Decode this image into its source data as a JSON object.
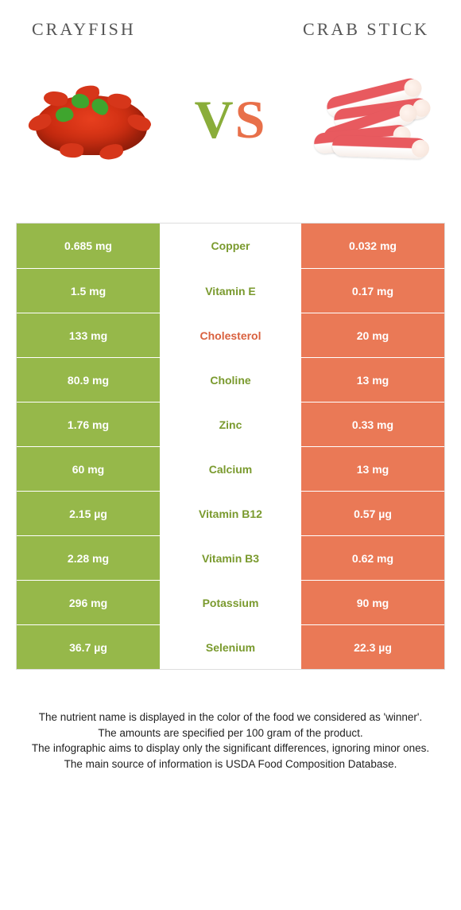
{
  "header": {
    "left": "Crayfish",
    "right": "Crab stick"
  },
  "vs": {
    "v": "V",
    "s": "S"
  },
  "colors": {
    "left_bg": "#96b84a",
    "right_bg": "#ea7956",
    "mid_bg": "#ffffff",
    "left_text": "#7a9a2e",
    "right_text": "#d9613f"
  },
  "rows": [
    {
      "left": "0.685 mg",
      "label": "Copper",
      "winner": "left",
      "right": "0.032 mg"
    },
    {
      "left": "1.5 mg",
      "label": "Vitamin E",
      "winner": "left",
      "right": "0.17 mg"
    },
    {
      "left": "133 mg",
      "label": "Cholesterol",
      "winner": "right",
      "right": "20 mg"
    },
    {
      "left": "80.9 mg",
      "label": "Choline",
      "winner": "left",
      "right": "13 mg"
    },
    {
      "left": "1.76 mg",
      "label": "Zinc",
      "winner": "left",
      "right": "0.33 mg"
    },
    {
      "left": "60 mg",
      "label": "Calcium",
      "winner": "left",
      "right": "13 mg"
    },
    {
      "left": "2.15 µg",
      "label": "Vitamin B12",
      "winner": "left",
      "right": "0.57 µg"
    },
    {
      "left": "2.28 mg",
      "label": "Vitamin B3",
      "winner": "left",
      "right": "0.62 mg"
    },
    {
      "left": "296 mg",
      "label": "Potassium",
      "winner": "left",
      "right": "90 mg"
    },
    {
      "left": "36.7 µg",
      "label": "Selenium",
      "winner": "left",
      "right": "22.3 µg"
    }
  ],
  "footer": {
    "l1": "The nutrient name is displayed in the color of the food we considered as 'winner'.",
    "l2": "The amounts are specified per 100 gram of the product.",
    "l3": "The infographic aims to display only the significant differences, ignoring minor ones.",
    "l4": "The main source of information is USDA Food Composition Database."
  }
}
